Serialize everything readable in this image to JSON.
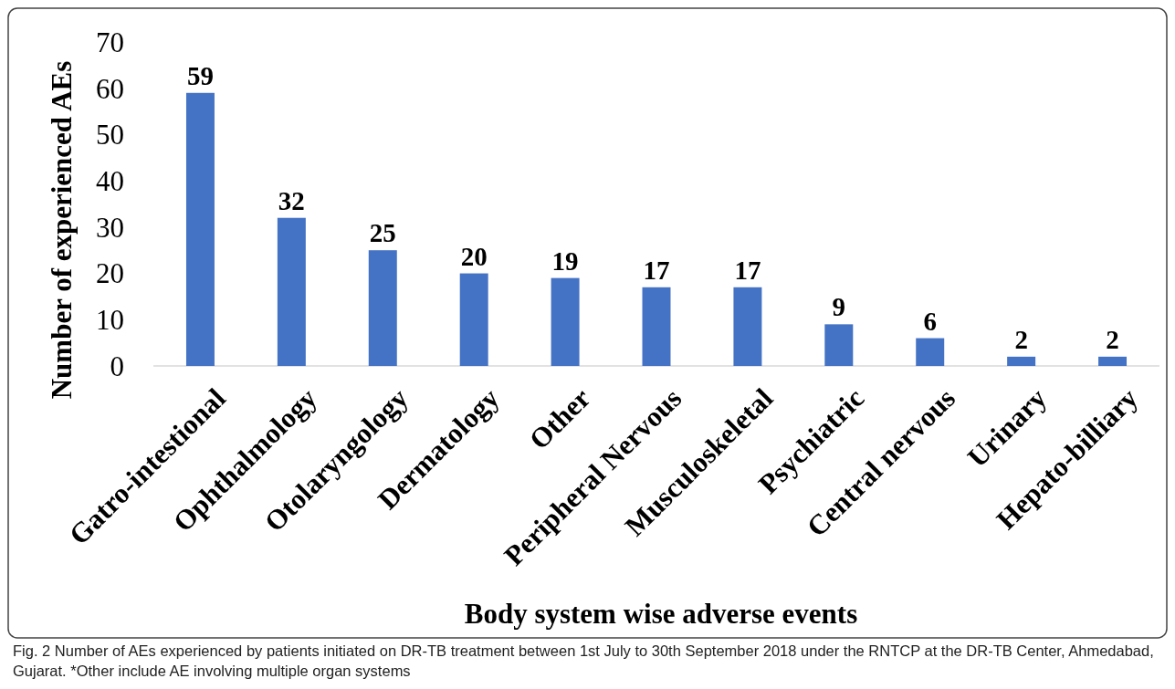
{
  "chart_data": {
    "type": "bar",
    "xlabel": "Body system wise adverse events",
    "ylabel": "Number of experienced AEs",
    "categories": [
      "Gatro-intestional",
      "Ophthalmology",
      "Otolaryngology",
      "Dermatology",
      "Other",
      "Peripheral Nervous",
      "Musculoskeletal",
      "Psychiatric",
      "Central nervous",
      "Urinary",
      "Hepato-billiary"
    ],
    "values": [
      59,
      32,
      25,
      20,
      19,
      17,
      17,
      9,
      6,
      2,
      2
    ],
    "color": "#4472c4",
    "ylim": [
      0,
      70
    ],
    "yticks": [
      0,
      10,
      20,
      30,
      40,
      50,
      60,
      70
    ],
    "grid": false,
    "data_labels": true,
    "annotations": [
      "Fig. 2 Number of AEs experienced by patients initiated on DR-TB treatment between 1st July to 30th September 2018 under the RNTCP at the DR-TB Center, Ahmedabad, Gujarat. *Other include AE involving multiple organ systems"
    ]
  }
}
